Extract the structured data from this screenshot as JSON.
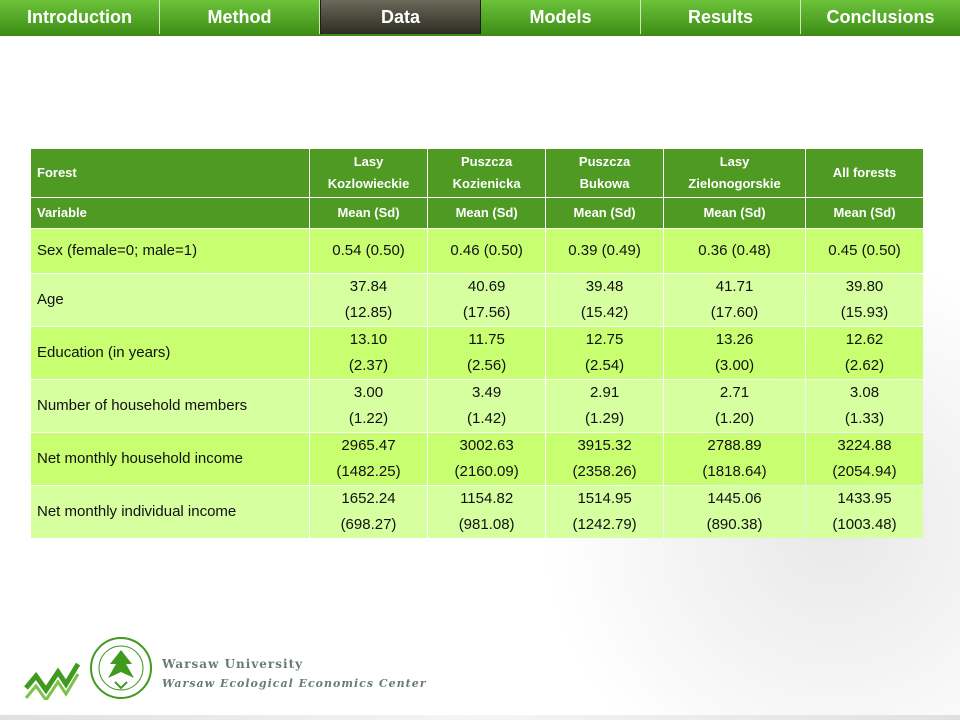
{
  "nav": {
    "tabs": [
      {
        "label": "Introduction",
        "active": false
      },
      {
        "label": "Method",
        "active": false
      },
      {
        "label": "Data",
        "active": true
      },
      {
        "label": "Models",
        "active": false
      },
      {
        "label": "Results",
        "active": false
      },
      {
        "label": "Conclusions",
        "active": false
      }
    ]
  },
  "table": {
    "header": {
      "col0": "Forest",
      "cols": [
        {
          "line1": "Lasy",
          "line2": "Kozlowieckie"
        },
        {
          "line1": "Puszcza",
          "line2": "Kozienicka"
        },
        {
          "line1": "Puszcza",
          "line2": "Bukowa"
        },
        {
          "line1": "Lasy",
          "line2": "Zielonogorskie"
        },
        {
          "line1": "All forests",
          "line2": ""
        }
      ]
    },
    "subheader": {
      "col0": "Variable",
      "cols": [
        "Mean (Sd)",
        "Mean (Sd)",
        "Mean (Sd)",
        "Mean (Sd)",
        "Mean (Sd)"
      ]
    },
    "rows": [
      {
        "label": "Sex (female=0; male=1)",
        "cells": [
          {
            "mean": "0.54 (0.50)",
            "sd": ""
          },
          {
            "mean": "0.46 (0.50)",
            "sd": ""
          },
          {
            "mean": "0.39 (0.49)",
            "sd": ""
          },
          {
            "mean": "0.36 (0.48)",
            "sd": ""
          },
          {
            "mean": "0.45 (0.50)",
            "sd": ""
          }
        ]
      },
      {
        "label": "Age",
        "cells": [
          {
            "mean": "37.84",
            "sd": "(12.85)"
          },
          {
            "mean": "40.69",
            "sd": "(17.56)"
          },
          {
            "mean": "39.48",
            "sd": "(15.42)"
          },
          {
            "mean": "41.71",
            "sd": "(17.60)"
          },
          {
            "mean": "39.80",
            "sd": "(15.93)"
          }
        ]
      },
      {
        "label": "Education (in years)",
        "cells": [
          {
            "mean": "13.10",
            "sd": "(2.37)"
          },
          {
            "mean": "11.75",
            "sd": "(2.56)"
          },
          {
            "mean": "12.75",
            "sd": "(2.54)"
          },
          {
            "mean": "13.26",
            "sd": "(3.00)"
          },
          {
            "mean": "12.62",
            "sd": "(2.62)"
          }
        ]
      },
      {
        "label": "Number of household members",
        "cells": [
          {
            "mean": "3.00",
            "sd": "(1.22)"
          },
          {
            "mean": "3.49",
            "sd": "(1.42)"
          },
          {
            "mean": "2.91",
            "sd": "(1.29)"
          },
          {
            "mean": "2.71",
            "sd": "(1.20)"
          },
          {
            "mean": "3.08",
            "sd": "(1.33)"
          }
        ]
      },
      {
        "label": "Net monthly household income",
        "cells": [
          {
            "mean": "2965.47",
            "sd": "(1482.25)"
          },
          {
            "mean": "3002.63",
            "sd": "(2160.09)"
          },
          {
            "mean": "3915.32",
            "sd": "(2358.26)"
          },
          {
            "mean": "2788.89",
            "sd": "(1818.64)"
          },
          {
            "mean": "3224.88",
            "sd": "(2054.94)"
          }
        ]
      },
      {
        "label": "Net monthly individual income",
        "cells": [
          {
            "mean": "1652.24",
            "sd": "(698.27)"
          },
          {
            "mean": "1154.82",
            "sd": "(981.08)"
          },
          {
            "mean": "1514.95",
            "sd": "(1242.79)"
          },
          {
            "mean": "1445.06",
            "sd": "(890.38)"
          },
          {
            "mean": "1433.95",
            "sd": "(1003.48)"
          }
        ]
      }
    ]
  },
  "footer": {
    "line1": "Warsaw University",
    "line2": "Warsaw Ecological Economics Center",
    "crest_text": "UNIVERSITAS VARSOVIENSIS"
  },
  "colors": {
    "nav_green": "#4a9a1f",
    "nav_active": "#2c2c22",
    "header_green": "#4e9a22",
    "row_light": "#c8ff70",
    "row_lighter": "#d6ffa0",
    "logo_green": "#3f9a1f"
  }
}
